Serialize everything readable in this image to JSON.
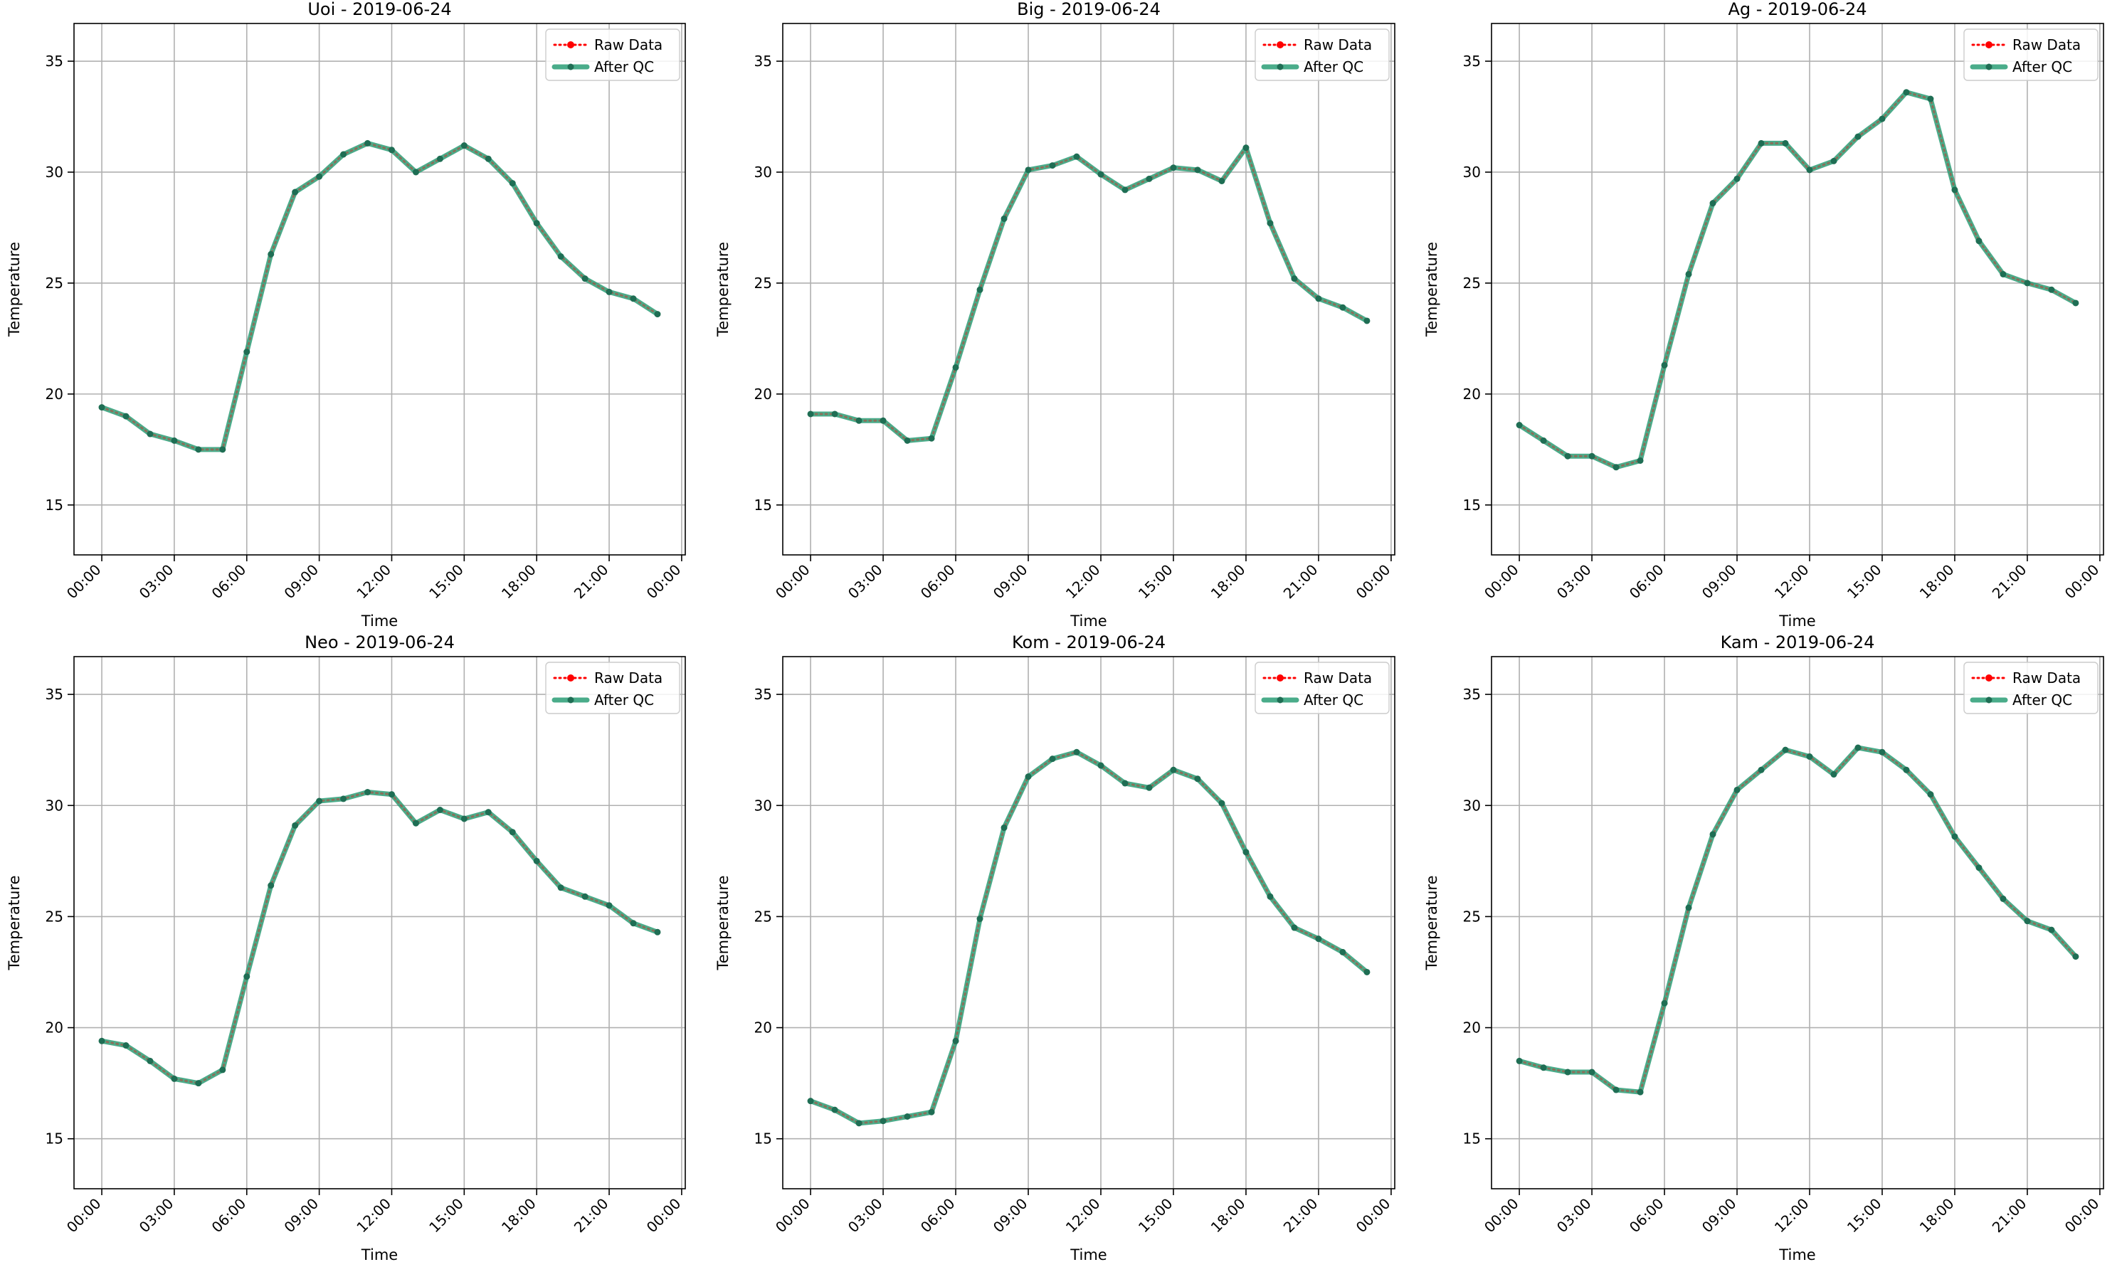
{
  "figure": {
    "legend_entries": {
      "raw": "Raw Data",
      "qc": "After QC"
    },
    "colors": {
      "raw": "#ff0000",
      "qc": "#2a9d76",
      "qc_marker": "#1f6e54",
      "grid": "#b0b0b0",
      "axes": "#000000"
    }
  },
  "chart_data": [
    {
      "type": "line",
      "title": "Uoi - 2019-06-24",
      "xlabel": "Time",
      "ylabel": "Temperature",
      "x": [
        "00:00",
        "01:00",
        "02:00",
        "03:00",
        "04:00",
        "05:00",
        "06:00",
        "07:00",
        "08:00",
        "09:00",
        "10:00",
        "11:00",
        "12:00",
        "13:00",
        "14:00",
        "15:00",
        "16:00",
        "17:00",
        "18:00",
        "19:00",
        "20:00",
        "21:00",
        "22:00",
        "23:00"
      ],
      "xticks": [
        "00:00",
        "03:00",
        "06:00",
        "09:00",
        "12:00",
        "15:00",
        "18:00",
        "21:00",
        "00:00"
      ],
      "yticks": [
        15,
        20,
        25,
        30,
        35
      ],
      "ylim": [
        12.75,
        36.7
      ],
      "grid": true,
      "legend": "upper right",
      "series": [
        {
          "name": "Raw Data",
          "values": [
            19.4,
            19.0,
            18.2,
            17.9,
            17.5,
            17.5,
            21.9,
            26.3,
            29.1,
            29.8,
            30.8,
            31.3,
            31.0,
            30.0,
            30.6,
            31.2,
            30.6,
            29.5,
            27.7,
            26.2,
            25.2,
            24.6,
            24.3,
            23.6
          ]
        },
        {
          "name": "After QC",
          "values": [
            19.4,
            19.0,
            18.2,
            17.9,
            17.5,
            17.5,
            21.9,
            26.3,
            29.1,
            29.8,
            30.8,
            31.3,
            31.0,
            30.0,
            30.6,
            31.2,
            30.6,
            29.5,
            27.7,
            26.2,
            25.2,
            24.6,
            24.3,
            23.6
          ]
        }
      ]
    },
    {
      "type": "line",
      "title": "Big - 2019-06-24",
      "xlabel": "Time",
      "ylabel": "Temperature",
      "x": [
        "00:00",
        "01:00",
        "02:00",
        "03:00",
        "04:00",
        "05:00",
        "06:00",
        "07:00",
        "08:00",
        "09:00",
        "10:00",
        "11:00",
        "12:00",
        "13:00",
        "14:00",
        "15:00",
        "16:00",
        "17:00",
        "18:00",
        "19:00",
        "20:00",
        "21:00",
        "22:00",
        "23:00"
      ],
      "xticks": [
        "00:00",
        "03:00",
        "06:00",
        "09:00",
        "12:00",
        "15:00",
        "18:00",
        "21:00",
        "00:00"
      ],
      "yticks": [
        15,
        20,
        25,
        30,
        35
      ],
      "ylim": [
        12.75,
        36.7
      ],
      "grid": true,
      "legend": "upper right",
      "series": [
        {
          "name": "Raw Data",
          "values": [
            19.1,
            19.1,
            18.8,
            18.8,
            17.9,
            18.0,
            21.2,
            24.7,
            27.9,
            30.1,
            30.3,
            30.7,
            29.9,
            29.2,
            29.7,
            30.2,
            30.1,
            29.6,
            31.1,
            27.7,
            25.2,
            24.3,
            23.9,
            23.3
          ]
        },
        {
          "name": "After QC",
          "values": [
            19.1,
            19.1,
            18.8,
            18.8,
            17.9,
            18.0,
            21.2,
            24.7,
            27.9,
            30.1,
            30.3,
            30.7,
            29.9,
            29.2,
            29.7,
            30.2,
            30.1,
            29.6,
            31.1,
            27.7,
            25.2,
            24.3,
            23.9,
            23.3
          ]
        }
      ]
    },
    {
      "type": "line",
      "title": "Ag - 2019-06-24",
      "xlabel": "Time",
      "ylabel": "Temperature",
      "x": [
        "00:00",
        "01:00",
        "02:00",
        "03:00",
        "04:00",
        "05:00",
        "06:00",
        "07:00",
        "08:00",
        "09:00",
        "10:00",
        "11:00",
        "12:00",
        "13:00",
        "14:00",
        "15:00",
        "16:00",
        "17:00",
        "18:00",
        "19:00",
        "20:00",
        "21:00",
        "22:00",
        "23:00"
      ],
      "xticks": [
        "00:00",
        "03:00",
        "06:00",
        "09:00",
        "12:00",
        "15:00",
        "18:00",
        "21:00",
        "00:00"
      ],
      "yticks": [
        15,
        20,
        25,
        30,
        35
      ],
      "ylim": [
        12.75,
        36.7
      ],
      "grid": true,
      "legend": "upper right",
      "series": [
        {
          "name": "Raw Data",
          "values": [
            18.6,
            17.9,
            17.2,
            17.2,
            16.7,
            17.0,
            21.3,
            25.4,
            28.6,
            29.7,
            31.3,
            31.3,
            30.1,
            30.5,
            31.6,
            32.4,
            33.6,
            33.3,
            29.2,
            26.9,
            25.4,
            25.0,
            24.7,
            24.1
          ]
        },
        {
          "name": "After QC",
          "values": [
            18.6,
            17.9,
            17.2,
            17.2,
            16.7,
            17.0,
            21.3,
            25.4,
            28.6,
            29.7,
            31.3,
            31.3,
            30.1,
            30.5,
            31.6,
            32.4,
            33.6,
            33.3,
            29.2,
            26.9,
            25.4,
            25.0,
            24.7,
            24.1
          ]
        }
      ]
    },
    {
      "type": "line",
      "title": "Neo - 2019-06-24",
      "xlabel": "Time",
      "ylabel": "Temperature",
      "x": [
        "00:00",
        "01:00",
        "02:00",
        "03:00",
        "04:00",
        "05:00",
        "06:00",
        "07:00",
        "08:00",
        "09:00",
        "10:00",
        "11:00",
        "12:00",
        "13:00",
        "14:00",
        "15:00",
        "16:00",
        "17:00",
        "18:00",
        "19:00",
        "20:00",
        "21:00",
        "22:00",
        "23:00"
      ],
      "xticks": [
        "00:00",
        "03:00",
        "06:00",
        "09:00",
        "12:00",
        "15:00",
        "18:00",
        "21:00",
        "00:00"
      ],
      "yticks": [
        15,
        20,
        25,
        30,
        35
      ],
      "ylim": [
        12.75,
        36.7
      ],
      "grid": true,
      "legend": "upper right",
      "series": [
        {
          "name": "Raw Data",
          "values": [
            19.4,
            19.2,
            18.5,
            17.7,
            17.5,
            18.1,
            22.3,
            26.4,
            29.1,
            30.2,
            30.3,
            30.6,
            30.5,
            29.2,
            29.8,
            29.4,
            29.7,
            28.8,
            27.5,
            26.3,
            25.9,
            25.5,
            24.7,
            24.3
          ]
        },
        {
          "name": "After QC",
          "values": [
            19.4,
            19.2,
            18.5,
            17.7,
            17.5,
            18.1,
            22.3,
            26.4,
            29.1,
            30.2,
            30.3,
            30.6,
            30.5,
            29.2,
            29.8,
            29.4,
            29.7,
            28.8,
            27.5,
            26.3,
            25.9,
            25.5,
            24.7,
            24.3
          ]
        }
      ]
    },
    {
      "type": "line",
      "title": "Kom - 2019-06-24",
      "xlabel": "Time",
      "ylabel": "Temperature",
      "x": [
        "00:00",
        "01:00",
        "02:00",
        "03:00",
        "04:00",
        "05:00",
        "06:00",
        "07:00",
        "08:00",
        "09:00",
        "10:00",
        "11:00",
        "12:00",
        "13:00",
        "14:00",
        "15:00",
        "16:00",
        "17:00",
        "18:00",
        "19:00",
        "20:00",
        "21:00",
        "22:00",
        "23:00"
      ],
      "xticks": [
        "00:00",
        "03:00",
        "06:00",
        "09:00",
        "12:00",
        "15:00",
        "18:00",
        "21:00",
        "00:00"
      ],
      "yticks": [
        15,
        20,
        25,
        30,
        35
      ],
      "ylim": [
        12.75,
        36.7
      ],
      "grid": true,
      "legend": "upper right",
      "series": [
        {
          "name": "Raw Data",
          "values": [
            16.7,
            16.3,
            15.7,
            15.8,
            16.0,
            16.2,
            19.4,
            24.9,
            29.0,
            31.3,
            32.1,
            32.4,
            31.8,
            31.0,
            30.8,
            31.6,
            31.2,
            30.1,
            27.9,
            25.9,
            24.5,
            24.0,
            23.4,
            22.5
          ]
        },
        {
          "name": "After QC",
          "values": [
            16.7,
            16.3,
            15.7,
            15.8,
            16.0,
            16.2,
            19.4,
            24.9,
            29.0,
            31.3,
            32.1,
            32.4,
            31.8,
            31.0,
            30.8,
            31.6,
            31.2,
            30.1,
            27.9,
            25.9,
            24.5,
            24.0,
            23.4,
            22.5
          ]
        }
      ]
    },
    {
      "type": "line",
      "title": "Kam - 2019-06-24",
      "xlabel": "Time",
      "ylabel": "Temperature",
      "x": [
        "00:00",
        "01:00",
        "02:00",
        "03:00",
        "04:00",
        "05:00",
        "06:00",
        "07:00",
        "08:00",
        "09:00",
        "10:00",
        "11:00",
        "12:00",
        "13:00",
        "14:00",
        "15:00",
        "16:00",
        "17:00",
        "18:00",
        "19:00",
        "20:00",
        "21:00",
        "22:00",
        "23:00"
      ],
      "xticks": [
        "00:00",
        "03:00",
        "06:00",
        "09:00",
        "12:00",
        "15:00",
        "18:00",
        "21:00",
        "00:00"
      ],
      "yticks": [
        15,
        20,
        25,
        30,
        35
      ],
      "ylim": [
        12.75,
        36.7
      ],
      "grid": true,
      "legend": "upper right",
      "series": [
        {
          "name": "Raw Data",
          "values": [
            18.5,
            18.2,
            18.0,
            18.0,
            17.2,
            17.1,
            21.1,
            25.4,
            28.7,
            30.7,
            31.6,
            32.5,
            32.2,
            31.4,
            32.6,
            32.4,
            31.6,
            30.5,
            28.6,
            27.2,
            25.8,
            24.8,
            24.4,
            23.2
          ]
        },
        {
          "name": "After QC",
          "values": [
            18.5,
            18.2,
            18.0,
            18.0,
            17.2,
            17.1,
            21.1,
            25.4,
            28.7,
            30.7,
            31.6,
            32.5,
            32.2,
            31.4,
            32.6,
            32.4,
            31.6,
            30.5,
            28.6,
            27.2,
            25.8,
            24.8,
            24.4,
            23.2
          ]
        }
      ]
    }
  ]
}
